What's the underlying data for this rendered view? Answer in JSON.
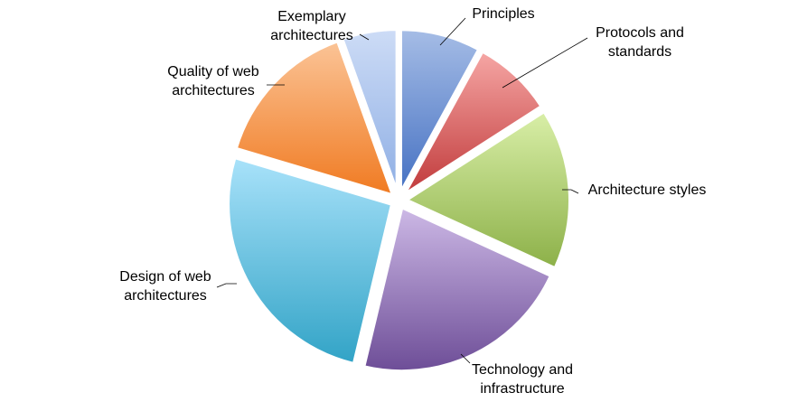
{
  "chart_data": {
    "type": "pie",
    "title": "",
    "categories": [
      "Principles",
      "Protocols and standards",
      "Architecture styles",
      "Technology and infrastructure",
      "Design of web architectures",
      "Quality of web architectures",
      "Exemplary architectures"
    ],
    "values": [
      8,
      8,
      16,
      22,
      26,
      15,
      5.5
    ],
    "label_lines": [
      [
        "Principles"
      ],
      [
        "Protocols and",
        "standards"
      ],
      [
        "Architecture styles"
      ],
      [
        "Technology and",
        "infrastructure"
      ],
      [
        "Design of web",
        "architectures"
      ],
      [
        "Quality of web",
        "architectures"
      ],
      [
        "Exemplary",
        "architectures"
      ]
    ],
    "colors": [
      [
        "#a6bde6",
        "#4470c2"
      ],
      [
        "#f6a7a5",
        "#c0393a"
      ],
      [
        "#d9efa8",
        "#8cb048"
      ],
      [
        "#cdb9e6",
        "#6d4d97"
      ],
      [
        "#a9e2fa",
        "#31a3c6"
      ],
      [
        "#fbc497",
        "#f07a21"
      ],
      [
        "#cddcf6",
        "#8eaee4"
      ]
    ],
    "start_angle_deg": 0,
    "direction": "clockwise",
    "exploded": true,
    "legend": "none"
  }
}
